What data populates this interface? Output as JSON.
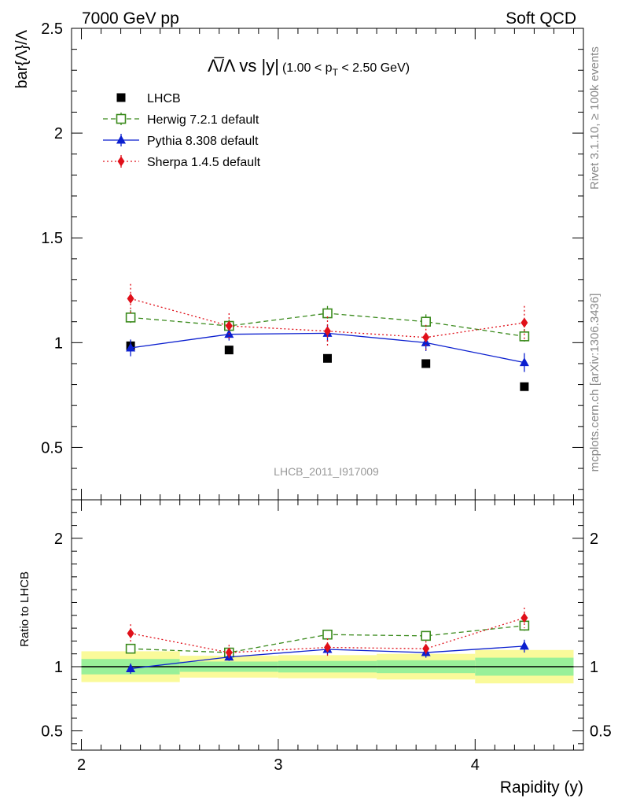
{
  "header": {
    "left": "7000 GeV pp",
    "right": "Soft QCD"
  },
  "side_labels": {
    "rivet": "Rivet 3.1.10, ≥ 100k events",
    "mcplots": "mcplots.cern.ch [arXiv:1306.3436]"
  },
  "title": {
    "main": "Λ̅/Λ vs |y|",
    "sub": "(1.00 < p",
    "sub_index": "T",
    "sub_tail": " < 2.50 GeV)"
  },
  "watermark": "LHCB_2011_I917009",
  "colors": {
    "lhcb": "#000000",
    "herwig": "#3a8a1c",
    "pythia": "#0b1fcf",
    "sherpa": "#e0101a",
    "band_inner": "#99f099",
    "band_outer": "#fafa9a"
  },
  "chart_data": [
    {
      "type": "scatter",
      "panel": "main",
      "ylabel": "bar{Λ}/Λ",
      "xlim": [
        1.95,
        4.55
      ],
      "ylim": [
        0.25,
        2.5
      ],
      "x_ticks": [
        "2",
        "3",
        "4"
      ],
      "y_ticks": [
        "0.5",
        "1",
        "1.5",
        "2",
        "2.5"
      ],
      "x": [
        2.25,
        2.75,
        3.25,
        3.75,
        4.25
      ],
      "legend": "top-left",
      "series": [
        {
          "name": "LHCB",
          "key": "lhcb",
          "marker": "square-filled",
          "line": "none",
          "values": [
            0.985,
            0.965,
            0.925,
            0.9,
            0.79
          ],
          "errors": [
            0.025,
            0.01,
            0.01,
            0.01,
            0.01
          ]
        },
        {
          "name": "Herwig 7.2.1 default",
          "key": "herwig",
          "marker": "square-open",
          "line": "dashed",
          "values": [
            1.12,
            1.08,
            1.14,
            1.1,
            1.03
          ],
          "errors": [
            0.035,
            0.03,
            0.035,
            0.035,
            0.035
          ]
        },
        {
          "name": "Pythia 8.308 default",
          "key": "pythia",
          "marker": "triangle",
          "line": "solid",
          "values": [
            0.975,
            1.04,
            1.045,
            1.0,
            0.905
          ],
          "errors": [
            0.04,
            0.03,
            0.04,
            0.04,
            0.045
          ]
        },
        {
          "name": "Sherpa 1.4.5 default",
          "key": "sherpa",
          "marker": "diamond",
          "line": "dotted",
          "values": [
            1.21,
            1.08,
            1.055,
            1.025,
            1.095
          ],
          "errors": [
            0.07,
            0.06,
            0.07,
            0.06,
            0.08
          ]
        }
      ]
    },
    {
      "type": "scatter",
      "panel": "ratio",
      "ylabel": "Ratio to LHCB",
      "xlabel": "Rapidity (y)",
      "xlim": [
        1.95,
        4.55
      ],
      "ylim": [
        0.35,
        2.3
      ],
      "x_ticks": [
        "2",
        "3",
        "4"
      ],
      "y_ticks": [
        "0.5",
        "1",
        "2"
      ],
      "x": [
        2.25,
        2.75,
        3.25,
        3.75,
        4.25
      ],
      "band": {
        "edges": [
          2.0,
          2.5,
          3.0,
          3.5,
          4.0,
          4.5
        ],
        "inner": [
          0.06,
          0.04,
          0.045,
          0.05,
          0.07
        ],
        "outer": [
          0.12,
          0.085,
          0.09,
          0.1,
          0.13
        ]
      },
      "series": [
        {
          "key": "herwig",
          "marker": "square-open",
          "line": "dashed",
          "values": [
            1.14,
            1.11,
            1.25,
            1.24,
            1.32
          ],
          "errors": [
            0.03,
            0.03,
            0.035,
            0.035,
            0.04
          ]
        },
        {
          "key": "pythia",
          "marker": "triangle",
          "line": "solid",
          "values": [
            0.985,
            1.075,
            1.135,
            1.11,
            1.16
          ],
          "errors": [
            0.04,
            0.03,
            0.04,
            0.04,
            0.05
          ]
        },
        {
          "key": "sherpa",
          "marker": "diamond",
          "line": "dotted",
          "values": [
            1.26,
            1.11,
            1.15,
            1.14,
            1.38
          ],
          "errors": [
            0.07,
            0.06,
            0.07,
            0.06,
            0.08
          ]
        }
      ]
    }
  ]
}
